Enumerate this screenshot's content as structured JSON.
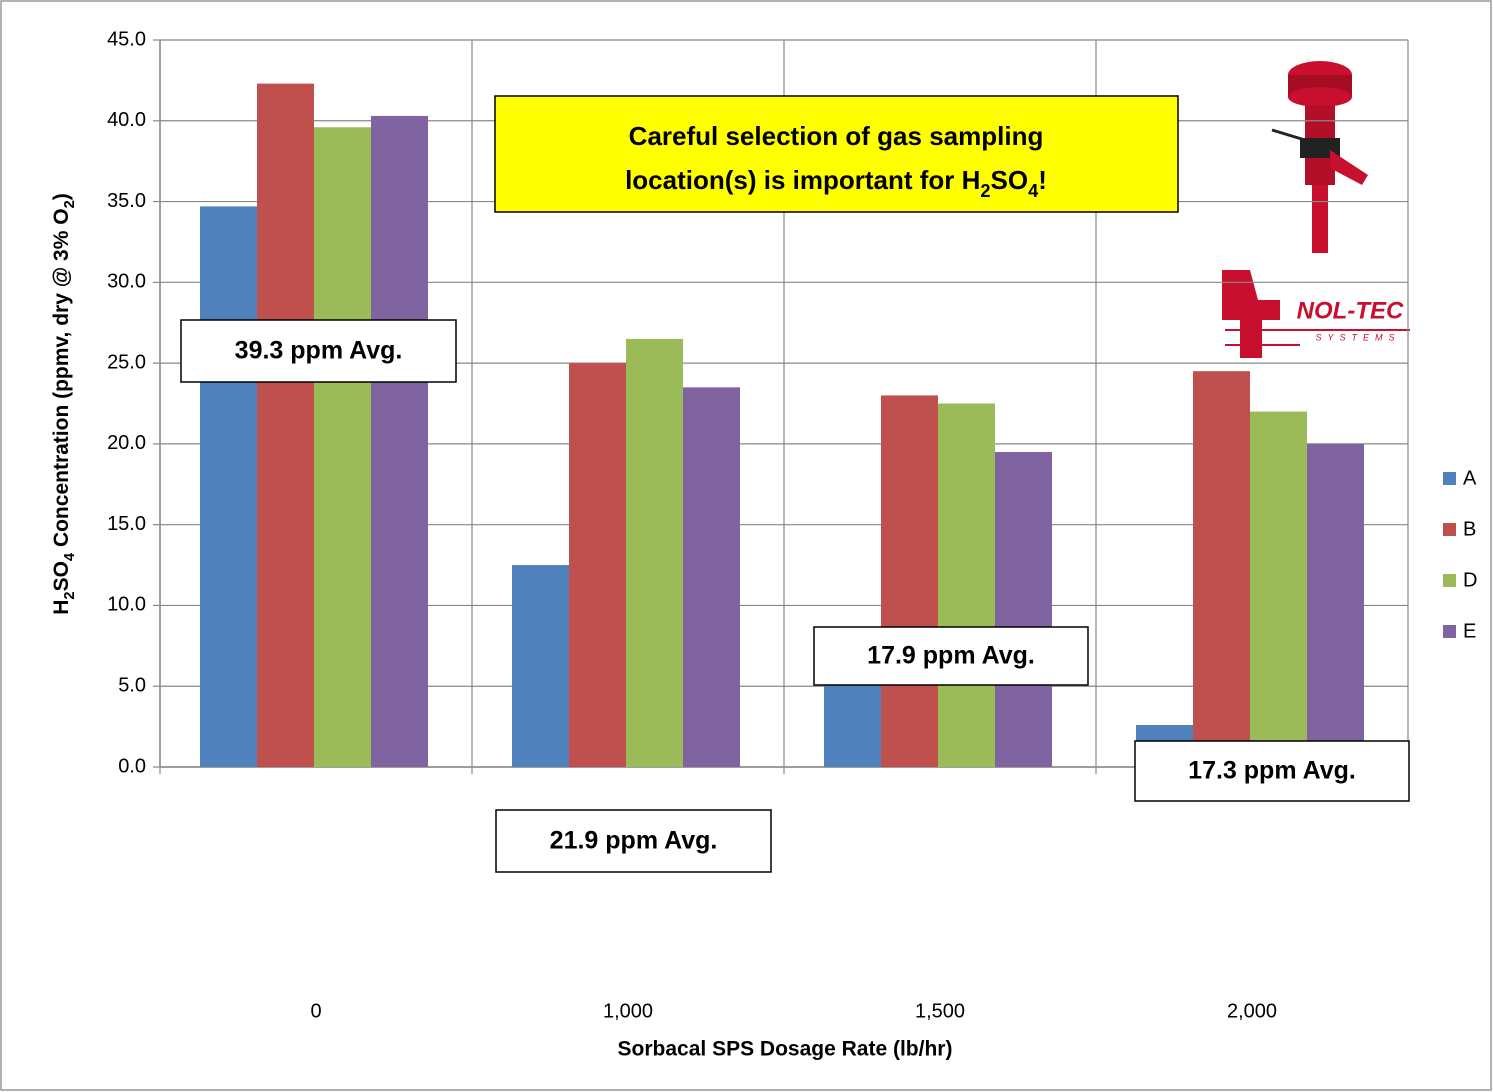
{
  "chart_data": {
    "type": "bar",
    "annotation": [
      "Careful selection of gas sampling",
      "location(s) is important for H2SO4!"
    ],
    "x_label": "Sorbacal SPS Dosage Rate (lb/hr)",
    "y_label": "H2SO4 Concentration (ppmv, dry @ 3% O2)",
    "categories": [
      "0",
      "1,000",
      "1,500",
      "2,000"
    ],
    "series": [
      {
        "name": "A",
        "color": "#4f81bd",
        "values": [
          34.7,
          12.5,
          6.7,
          2.6
        ]
      },
      {
        "name": "B",
        "color": "#c0504d",
        "values": [
          42.3,
          25.0,
          23.0,
          24.5
        ]
      },
      {
        "name": "D",
        "color": "#9bbb59",
        "values": [
          39.6,
          26.5,
          22.5,
          22.0
        ]
      },
      {
        "name": "E",
        "color": "#8064a2",
        "values": [
          40.3,
          23.5,
          19.5,
          20.0
        ]
      }
    ],
    "averages": [
      "39.3 ppm Avg.",
      "21.9 ppm Avg.",
      "17.9 ppm Avg.",
      "17.3 ppm Avg."
    ],
    "logo": {
      "name": "NOL-TEC",
      "subtitle": "SYSTEMS"
    },
    "ylim": [
      0,
      45
    ],
    "yticks": [
      {
        "value": 0,
        "label": "0.0"
      },
      {
        "value": 5,
        "label": "5.0"
      },
      {
        "value": 10,
        "label": "10.0"
      },
      {
        "value": 15,
        "label": "15.0"
      },
      {
        "value": 20,
        "label": "20.0"
      },
      {
        "value": 25,
        "label": "25.0"
      },
      {
        "value": 30,
        "label": "30.0"
      },
      {
        "value": 35,
        "label": "35.0"
      },
      {
        "value": 40,
        "label": "40.0"
      },
      {
        "value": 45,
        "label": "45.0"
      }
    ],
    "grid": true,
    "legend": "right"
  }
}
